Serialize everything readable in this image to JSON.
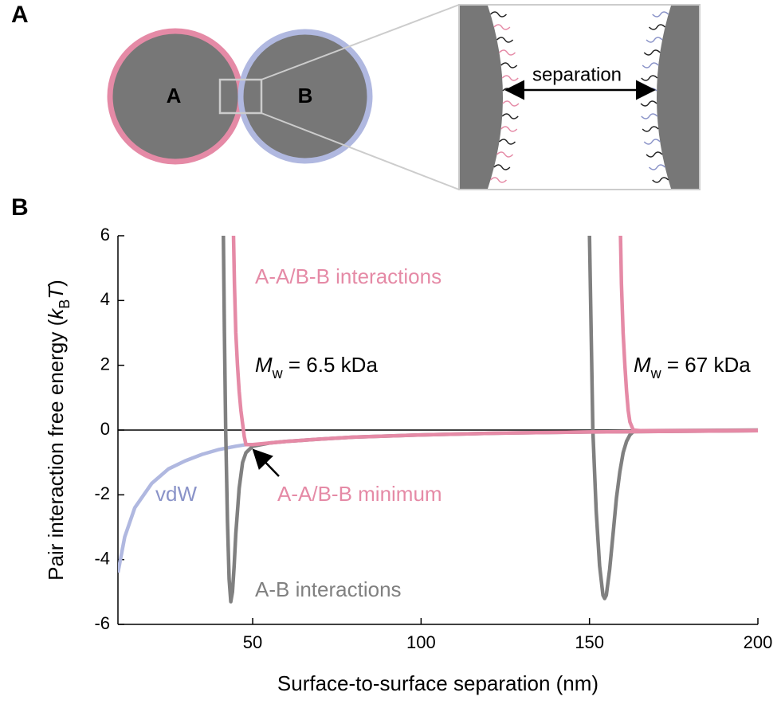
{
  "panel_labels": [
    "A",
    "B"
  ],
  "diagram": {
    "particle_a": "A",
    "particle_b": "B",
    "inset_label": "separation"
  },
  "chart_data": {
    "type": "line",
    "xlabel": "Surface-to-surface separation (nm)",
    "ylabel_parts": [
      "Pair interaction free energy (",
      "k",
      "B",
      "T",
      ")"
    ],
    "xlim": [
      10,
      200
    ],
    "xticks": [
      50,
      100,
      150,
      200
    ],
    "ylim": [
      -6,
      6
    ],
    "yticks": [
      -6,
      -4,
      -2,
      0,
      2,
      4,
      6
    ],
    "zero_line": true,
    "series": [
      {
        "name": "vdW",
        "color": "#b0b8e0",
        "x": [
          10,
          12,
          15,
          20,
          25,
          30,
          35,
          40,
          45,
          48
        ],
        "values": [
          -4.4,
          -3.3,
          -2.4,
          -1.65,
          -1.2,
          -0.95,
          -0.75,
          -0.6,
          -0.5,
          -0.45
        ]
      },
      {
        "name": "A-B interactions",
        "color": "#808080",
        "x": [
          41.3,
          41.6,
          42,
          42.5,
          43,
          43.5,
          44,
          44.5,
          45,
          46,
          47,
          48,
          50,
          55,
          60,
          70,
          80,
          100,
          120,
          150,
          200
        ],
        "values": [
          6,
          3,
          0,
          -2.8,
          -4.6,
          -5.3,
          -5.0,
          -4.2,
          -3.2,
          -1.8,
          -1.0,
          -0.7,
          -0.5,
          -0.4,
          -0.35,
          -0.28,
          -0.22,
          -0.15,
          -0.1,
          -0.06,
          -0.02
        ]
      },
      {
        "name": "A-B interactions",
        "color": "#808080",
        "x": [
          150,
          150.5,
          151,
          152,
          153,
          154,
          154.5,
          155,
          156,
          157,
          158,
          159,
          160,
          161,
          162,
          163,
          165,
          200
        ],
        "values": [
          6,
          3,
          0,
          -2.5,
          -4.2,
          -5.1,
          -5.2,
          -5.1,
          -4.3,
          -3.2,
          -2.1,
          -1.3,
          -0.7,
          -0.35,
          -0.15,
          -0.05,
          -0.02,
          0
        ]
      },
      {
        "name": "A-A/B-B interactions",
        "color": "#e58aa6",
        "x": [
          44.3,
          44.6,
          45,
          45.5,
          46,
          46.5,
          47,
          47.5,
          48,
          50,
          55,
          60,
          70,
          80,
          100,
          120,
          150,
          200
        ],
        "values": [
          6,
          4.5,
          3,
          2,
          1.2,
          0.6,
          0.2,
          -0.2,
          -0.45,
          -0.45,
          -0.4,
          -0.35,
          -0.28,
          -0.22,
          -0.15,
          -0.1,
          -0.06,
          -0.02
        ]
      },
      {
        "name": "A-A/B-B interactions",
        "color": "#e58aa6",
        "x": [
          159.2,
          159.5,
          160,
          160.5,
          161,
          161.5,
          162,
          163,
          165,
          200
        ],
        "values": [
          6,
          4.5,
          3,
          2,
          1.2,
          0.6,
          0.25,
          0,
          -0.02,
          -0.01
        ]
      }
    ],
    "annotations": [
      {
        "text": "A-A/B-B interactions",
        "color": "#e58aa6"
      },
      {
        "parts": [
          "M",
          "w",
          " = 6.5 kDa"
        ],
        "color": "#000000"
      },
      {
        "parts": [
          "M",
          "w",
          " = 67 kDa"
        ],
        "color": "#000000"
      },
      {
        "text": "vdW",
        "color": "#8a93c8"
      },
      {
        "text": "A-A/B-B minimum",
        "color": "#e58aa6"
      },
      {
        "text": "A-B interactions",
        "color": "#808080"
      }
    ]
  }
}
